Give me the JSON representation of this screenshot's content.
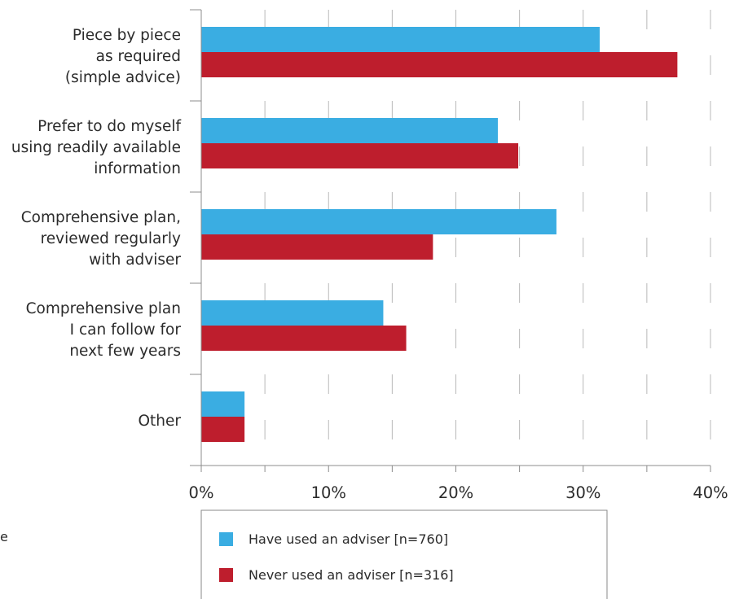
{
  "chart_data": {
    "type": "bar",
    "orientation": "horizontal",
    "categories": [
      [
        "Piece by piece",
        "as required",
        "(simple advice)"
      ],
      [
        "Prefer to do myself",
        "using readily available",
        "information"
      ],
      [
        "Comprehensive plan,",
        "reviewed regularly",
        "with adviser"
      ],
      [
        "Comprehensive plan",
        "I can follow for",
        "next few years"
      ],
      [
        "Other"
      ]
    ],
    "series": [
      {
        "name": "Have used an adviser [n=760]",
        "color": "#3aade2",
        "values": [
          31.3,
          23.3,
          27.9,
          14.3,
          3.4
        ]
      },
      {
        "name": "Never used an adviser [n=316]",
        "color": "#be1e2d",
        "values": [
          37.4,
          24.9,
          18.2,
          16.1,
          3.4
        ]
      }
    ],
    "xticks": [
      "0%",
      "10%",
      "20%",
      "30%",
      "40%"
    ],
    "xlim": [
      0,
      40
    ],
    "grid": "dashed vertical",
    "legend_position": "bottom",
    "title": "",
    "xlabel": "",
    "ylabel": ""
  },
  "stray_text": "e"
}
